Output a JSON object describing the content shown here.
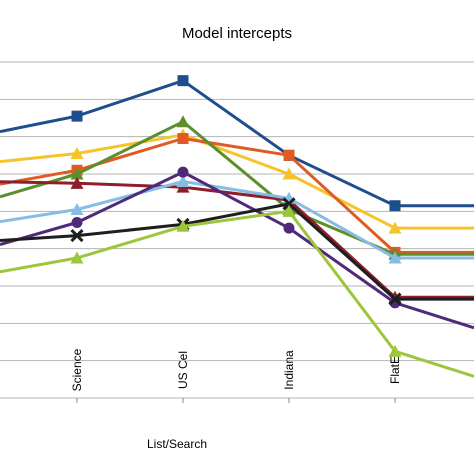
{
  "chart_data": {
    "type": "line",
    "title": "Model intercepts",
    "xlabel": "List/Search",
    "ylabel": "",
    "categories": [
      "Science",
      "US Cel",
      "Indiana",
      "FlatE"
    ],
    "ylim": [
      0,
      9
    ],
    "grid": true,
    "legend": "none",
    "series": [
      {
        "color": "#1f4e8c",
        "marker": "square",
        "values": [
          7.55,
          8.5,
          6.5,
          5.15
        ]
      },
      {
        "color": "#f6c42a",
        "marker": "triangle",
        "values": [
          6.55,
          7.05,
          6.0,
          4.55
        ]
      },
      {
        "color": "#e05a23",
        "marker": "square",
        "values": [
          6.1,
          6.95,
          6.5,
          3.9
        ]
      },
      {
        "color": "#5c8f2c",
        "marker": "triangle",
        "values": [
          6.0,
          7.4,
          5.05,
          3.85
        ]
      },
      {
        "color": "#8e1f2a",
        "marker": "triangle",
        "values": [
          5.75,
          5.65,
          5.3,
          2.7
        ]
      },
      {
        "color": "#86bde4",
        "marker": "triangle",
        "values": [
          5.05,
          5.8,
          5.35,
          3.75
        ]
      },
      {
        "color": "#51297a",
        "marker": "circle",
        "values": [
          4.7,
          6.05,
          4.55,
          2.55
        ]
      },
      {
        "color": "#1e1e1e",
        "marker": "x",
        "values": [
          4.35,
          4.65,
          5.2,
          2.65
        ]
      },
      {
        "color": "#9cc63b",
        "marker": "triangle",
        "values": [
          3.75,
          4.6,
          5.0,
          1.25
        ]
      }
    ]
  }
}
